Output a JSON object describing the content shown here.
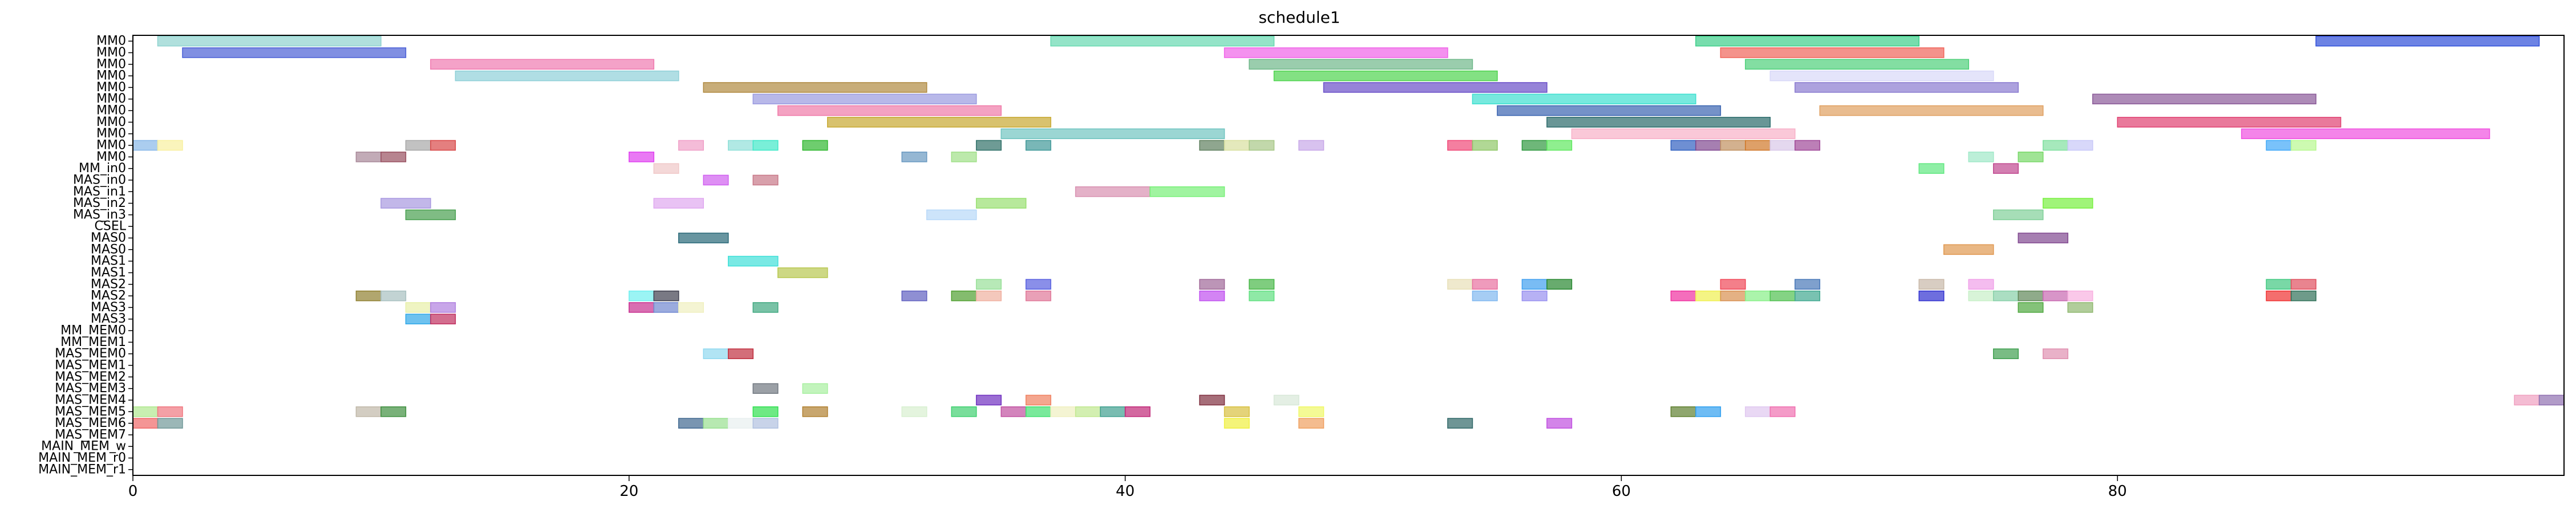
{
  "chart_data": {
    "type": "gantt",
    "title": "schedule1",
    "xlim": [
      0,
      98
    ],
    "x_ticks": [
      0,
      20,
      40,
      60,
      80
    ],
    "grid": false,
    "rows": [
      "MM0",
      "MM0",
      "MM0",
      "MM0",
      "MM0",
      "MM0",
      "MM0",
      "MM0",
      "MM0",
      "MM0",
      "MM0",
      "MM_in0",
      "MAS_in0",
      "MAS_in1",
      "MAS_in2",
      "MAS_in3",
      "CSEL",
      "MAS0",
      "MAS0",
      "MAS1",
      "MAS1",
      "MAS2",
      "MAS2",
      "MAS3",
      "MAS3",
      "MM_MEM0",
      "MM_MEM1",
      "MAS_MEM0",
      "MAS_MEM1",
      "MAS_MEM2",
      "MAS_MEM3",
      "MAS_MEM4",
      "MAS_MEM5",
      "MAS_MEM6",
      "MAS_MEM7",
      "MAIN_MEM_w",
      "MAIN_MEM_r0",
      "MAIN_MEM_r1"
    ],
    "tasks": [
      {
        "row": 0,
        "start": 1,
        "end": 10,
        "color": "#8fd3cf"
      },
      {
        "row": 0,
        "start": 37,
        "end": 46,
        "color": "#66d9b0"
      },
      {
        "row": 0,
        "start": 63,
        "end": 72,
        "color": "#3dcf8a"
      },
      {
        "row": 0,
        "start": 88,
        "end": 97,
        "color": "#2f4fd9"
      },
      {
        "row": 1,
        "start": 2,
        "end": 11,
        "color": "#4a5fd6"
      },
      {
        "row": 1,
        "start": 44,
        "end": 53,
        "color": "#f062e8"
      },
      {
        "row": 1,
        "start": 64,
        "end": 73,
        "color": "#f0645a"
      },
      {
        "row": 2,
        "start": 12,
        "end": 21,
        "color": "#f07ab0"
      },
      {
        "row": 2,
        "start": 45,
        "end": 54,
        "color": "#6fb88a"
      },
      {
        "row": 2,
        "start": 65,
        "end": 74,
        "color": "#4fd07a"
      },
      {
        "row": 3,
        "start": 13,
        "end": 22,
        "color": "#8fd0d8"
      },
      {
        "row": 3,
        "start": 46,
        "end": 55,
        "color": "#4ed44e"
      },
      {
        "row": 3,
        "start": 66,
        "end": 75,
        "color": "#d8d8f8"
      },
      {
        "row": 4,
        "start": 23,
        "end": 32,
        "color": "#b08a40"
      },
      {
        "row": 4,
        "start": 48,
        "end": 57,
        "color": "#6a4fc8"
      },
      {
        "row": 4,
        "start": 67,
        "end": 76,
        "color": "#8a7ad0"
      },
      {
        "row": 5,
        "start": 25,
        "end": 34,
        "color": "#9a9ae0"
      },
      {
        "row": 5,
        "start": 54,
        "end": 63,
        "color": "#3de0d0"
      },
      {
        "row": 5,
        "start": 79,
        "end": 88,
        "color": "#8a5a98"
      },
      {
        "row": 6,
        "start": 26,
        "end": 35,
        "color": "#f07aa8"
      },
      {
        "row": 6,
        "start": 55,
        "end": 64,
        "color": "#3a64b0"
      },
      {
        "row": 6,
        "start": 68,
        "end": 77,
        "color": "#e0a060"
      },
      {
        "row": 7,
        "start": 28,
        "end": 37,
        "color": "#c8a830"
      },
      {
        "row": 7,
        "start": 57,
        "end": 66,
        "color": "#2a6a6a"
      },
      {
        "row": 7,
        "start": 80,
        "end": 89,
        "color": "#e04070"
      },
      {
        "row": 8,
        "start": 35,
        "end": 44,
        "color": "#70c4c0"
      },
      {
        "row": 8,
        "start": 58,
        "end": 67,
        "color": "#f8b0c8"
      },
      {
        "row": 8,
        "start": 85,
        "end": 95,
        "color": "#f050e0"
      },
      {
        "row": 9,
        "start": 0,
        "end": 1,
        "color": "#88b8e8"
      },
      {
        "row": 9,
        "start": 1,
        "end": 2,
        "color": "#f8f0a0"
      },
      {
        "row": 9,
        "start": 11,
        "end": 12,
        "color": "#a8a8a8"
      },
      {
        "row": 9,
        "start": 12,
        "end": 13,
        "color": "#d84848"
      },
      {
        "row": 9,
        "start": 22,
        "end": 23,
        "color": "#f0a0c8"
      },
      {
        "row": 9,
        "start": 24,
        "end": 25,
        "color": "#90e0d8"
      },
      {
        "row": 9,
        "start": 25,
        "end": 26,
        "color": "#40e8c8"
      },
      {
        "row": 9,
        "start": 27,
        "end": 28,
        "color": "#30b830"
      },
      {
        "row": 9,
        "start": 34,
        "end": 35,
        "color": "#307068"
      },
      {
        "row": 9,
        "start": 36,
        "end": 37,
        "color": "#409898"
      },
      {
        "row": 9,
        "start": 43,
        "end": 44,
        "color": "#608060"
      },
      {
        "row": 9,
        "start": 44,
        "end": 45,
        "color": "#d8e0a0"
      },
      {
        "row": 9,
        "start": 45,
        "end": 46,
        "color": "#a8c888"
      },
      {
        "row": 9,
        "start": 47,
        "end": 48,
        "color": "#c8a8e8"
      },
      {
        "row": 9,
        "start": 53,
        "end": 54,
        "color": "#f04878"
      },
      {
        "row": 9,
        "start": 54,
        "end": 55,
        "color": "#90c868"
      },
      {
        "row": 9,
        "start": 56,
        "end": 57,
        "color": "#309840"
      },
      {
        "row": 9,
        "start": 57,
        "end": 58,
        "color": "#60e860"
      },
      {
        "row": 9,
        "start": 62,
        "end": 63,
        "color": "#3060c0"
      },
      {
        "row": 9,
        "start": 63,
        "end": 64,
        "color": "#804890"
      },
      {
        "row": 9,
        "start": 64,
        "end": 65,
        "color": "#c09060"
      },
      {
        "row": 9,
        "start": 65,
        "end": 66,
        "color": "#d07828"
      },
      {
        "row": 9,
        "start": 66,
        "end": 67,
        "color": "#d8c8e8"
      },
      {
        "row": 9,
        "start": 67,
        "end": 68,
        "color": "#a04898"
      },
      {
        "row": 9,
        "start": 77,
        "end": 78,
        "color": "#80e0a0"
      },
      {
        "row": 9,
        "start": 78,
        "end": 79,
        "color": "#c8c8f8"
      },
      {
        "row": 9,
        "start": 86,
        "end": 87,
        "color": "#40a8f8"
      },
      {
        "row": 9,
        "start": 87,
        "end": 88,
        "color": "#b8f890"
      },
      {
        "row": 10,
        "start": 9,
        "end": 10,
        "color": "#a88898"
      },
      {
        "row": 10,
        "start": 10,
        "end": 11,
        "color": "#985060"
      },
      {
        "row": 10,
        "start": 20,
        "end": 21,
        "color": "#e040f0"
      },
      {
        "row": 10,
        "start": 31,
        "end": 32,
        "color": "#6898c0"
      },
      {
        "row": 10,
        "start": 33,
        "end": 34,
        "color": "#a0e088"
      },
      {
        "row": 10,
        "start": 74,
        "end": 75,
        "color": "#a0e8c8"
      },
      {
        "row": 10,
        "start": 76,
        "end": 77,
        "color": "#78d868"
      },
      {
        "row": 11,
        "start": 21,
        "end": 22,
        "color": "#f0c8c8"
      },
      {
        "row": 11,
        "start": 72,
        "end": 73,
        "color": "#60e880"
      },
      {
        "row": 11,
        "start": 75,
        "end": 76,
        "color": "#c04890"
      },
      {
        "row": 12,
        "start": 23,
        "end": 24,
        "color": "#d060f0"
      },
      {
        "row": 12,
        "start": 25,
        "end": 26,
        "color": "#c87888"
      },
      {
        "row": 13,
        "start": 38,
        "end": 41,
        "color": "#d890b0"
      },
      {
        "row": 13,
        "start": 41,
        "end": 44,
        "color": "#78f078"
      },
      {
        "row": 14,
        "start": 10,
        "end": 12,
        "color": "#a898e0"
      },
      {
        "row": 14,
        "start": 21,
        "end": 23,
        "color": "#e0a8f0"
      },
      {
        "row": 14,
        "start": 34,
        "end": 36,
        "color": "#98e070"
      },
      {
        "row": 14,
        "start": 77,
        "end": 79,
        "color": "#78f040"
      },
      {
        "row": 15,
        "start": 11,
        "end": 13,
        "color": "#48a050"
      },
      {
        "row": 15,
        "start": 32,
        "end": 34,
        "color": "#b8d8f8"
      },
      {
        "row": 15,
        "start": 75,
        "end": 77,
        "color": "#80d098"
      },
      {
        "row": 17,
        "start": 22,
        "end": 24,
        "color": "#286878"
      },
      {
        "row": 17,
        "start": 76,
        "end": 78,
        "color": "#804890"
      },
      {
        "row": 18,
        "start": 73,
        "end": 75,
        "color": "#e09850"
      },
      {
        "row": 19,
        "start": 24,
        "end": 26,
        "color": "#40e0d8"
      },
      {
        "row": 20,
        "start": 26,
        "end": 28,
        "color": "#b8c850"
      },
      {
        "row": 21,
        "start": 34,
        "end": 35,
        "color": "#98e098"
      },
      {
        "row": 21,
        "start": 36,
        "end": 37,
        "color": "#5860e0"
      },
      {
        "row": 21,
        "start": 43,
        "end": 44,
        "color": "#a06898"
      },
      {
        "row": 21,
        "start": 45,
        "end": 46,
        "color": "#48b848"
      },
      {
        "row": 21,
        "start": 53,
        "end": 54,
        "color": "#e8e0b8"
      },
      {
        "row": 21,
        "start": 54,
        "end": 55,
        "color": "#e870a0"
      },
      {
        "row": 21,
        "start": 56,
        "end": 57,
        "color": "#40a0f0"
      },
      {
        "row": 21,
        "start": 57,
        "end": 58,
        "color": "#288830"
      },
      {
        "row": 21,
        "start": 64,
        "end": 65,
        "color": "#f04858"
      },
      {
        "row": 21,
        "start": 67,
        "end": 68,
        "color": "#4878b8"
      },
      {
        "row": 21,
        "start": 72,
        "end": 73,
        "color": "#c8b8a8"
      },
      {
        "row": 21,
        "start": 74,
        "end": 75,
        "color": "#f0a0e8"
      },
      {
        "row": 21,
        "start": 86,
        "end": 87,
        "color": "#40c880"
      },
      {
        "row": 21,
        "start": 87,
        "end": 88,
        "color": "#e05060"
      },
      {
        "row": 22,
        "start": 9,
        "end": 10,
        "color": "#908030"
      },
      {
        "row": 22,
        "start": 10,
        "end": 11,
        "color": "#a8c0c0"
      },
      {
        "row": 22,
        "start": 20,
        "end": 21,
        "color": "#70f0f0"
      },
      {
        "row": 22,
        "start": 21,
        "end": 22,
        "color": "#404050"
      },
      {
        "row": 22,
        "start": 31,
        "end": 32,
        "color": "#6060c0"
      },
      {
        "row": 22,
        "start": 33,
        "end": 34,
        "color": "#50a030"
      },
      {
        "row": 22,
        "start": 34,
        "end": 35,
        "color": "#f0b0a0"
      },
      {
        "row": 22,
        "start": 36,
        "end": 37,
        "color": "#e07898"
      },
      {
        "row": 22,
        "start": 43,
        "end": 44,
        "color": "#c050f0"
      },
      {
        "row": 22,
        "start": 45,
        "end": 46,
        "color": "#60e080"
      },
      {
        "row": 22,
        "start": 54,
        "end": 55,
        "color": "#80b8f0"
      },
      {
        "row": 22,
        "start": 56,
        "end": 57,
        "color": "#9890f0"
      },
      {
        "row": 22,
        "start": 62,
        "end": 63,
        "color": "#f030a0"
      },
      {
        "row": 22,
        "start": 63,
        "end": 64,
        "color": "#f0f050"
      },
      {
        "row": 22,
        "start": 64,
        "end": 65,
        "color": "#d89050"
      },
      {
        "row": 22,
        "start": 65,
        "end": 66,
        "color": "#88f088"
      },
      {
        "row": 22,
        "start": 66,
        "end": 67,
        "color": "#50c050"
      },
      {
        "row": 22,
        "start": 67,
        "end": 68,
        "color": "#40a890"
      },
      {
        "row": 22,
        "start": 72,
        "end": 73,
        "color": "#3030d0"
      },
      {
        "row": 22,
        "start": 74,
        "end": 75,
        "color": "#c8f0c8"
      },
      {
        "row": 22,
        "start": 75,
        "end": 76,
        "color": "#88d0a8"
      },
      {
        "row": 22,
        "start": 76,
        "end": 77,
        "color": "#608858"
      },
      {
        "row": 22,
        "start": 77,
        "end": 78,
        "color": "#c868b0"
      },
      {
        "row": 22,
        "start": 78,
        "end": 79,
        "color": "#f8b0e0"
      },
      {
        "row": 22,
        "start": 86,
        "end": 87,
        "color": "#f03030"
      },
      {
        "row": 22,
        "start": 87,
        "end": 88,
        "color": "#307058"
      },
      {
        "row": 23,
        "start": 11,
        "end": 12,
        "color": "#e8f0a8"
      },
      {
        "row": 23,
        "start": 12,
        "end": 13,
        "color": "#b080e0"
      },
      {
        "row": 23,
        "start": 20,
        "end": 21,
        "color": "#c83090"
      },
      {
        "row": 23,
        "start": 21,
        "end": 22,
        "color": "#7088d0"
      },
      {
        "row": 23,
        "start": 22,
        "end": 23,
        "color": "#f0f0c0"
      },
      {
        "row": 23,
        "start": 25,
        "end": 26,
        "color": "#40a880"
      },
      {
        "row": 23,
        "start": 76,
        "end": 77,
        "color": "#50a840"
      },
      {
        "row": 23,
        "start": 78,
        "end": 79,
        "color": "#90b870"
      },
      {
        "row": 24,
        "start": 11,
        "end": 12,
        "color": "#30a8e8"
      },
      {
        "row": 24,
        "start": 12,
        "end": 13,
        "color": "#c03060"
      },
      {
        "row": 27,
        "start": 23,
        "end": 24,
        "color": "#90d8f0"
      },
      {
        "row": 27,
        "start": 24,
        "end": 25,
        "color": "#c03040"
      },
      {
        "row": 27,
        "start": 75,
        "end": 76,
        "color": "#40a050"
      },
      {
        "row": 27,
        "start": 77,
        "end": 78,
        "color": "#e090b0"
      },
      {
        "row": 30,
        "start": 25,
        "end": 26,
        "color": "#707880"
      },
      {
        "row": 30,
        "start": 27,
        "end": 28,
        "color": "#a8f0a0"
      },
      {
        "row": 31,
        "start": 34,
        "end": 35,
        "color": "#7030c0"
      },
      {
        "row": 31,
        "start": 36,
        "end": 37,
        "color": "#f08060"
      },
      {
        "row": 31,
        "start": 43,
        "end": 44,
        "color": "#803040"
      },
      {
        "row": 31,
        "start": 46,
        "end": 47,
        "color": "#d8e8d8"
      },
      {
        "row": 31,
        "start": 96,
        "end": 97,
        "color": "#f0a0c0"
      },
      {
        "row": 31,
        "start": 97,
        "end": 98,
        "color": "#9070b0"
      },
      {
        "row": 32,
        "start": 0,
        "end": 1,
        "color": "#b0e890"
      },
      {
        "row": 32,
        "start": 1,
        "end": 2,
        "color": "#f07880"
      },
      {
        "row": 32,
        "start": 9,
        "end": 10,
        "color": "#c0b8a8"
      },
      {
        "row": 32,
        "start": 10,
        "end": 11,
        "color": "#409040"
      },
      {
        "row": 32,
        "start": 25,
        "end": 26,
        "color": "#30e050"
      },
      {
        "row": 32,
        "start": 27,
        "end": 28,
        "color": "#b08030"
      },
      {
        "row": 32,
        "start": 31,
        "end": 32,
        "color": "#d8f0d0"
      },
      {
        "row": 32,
        "start": 33,
        "end": 34,
        "color": "#40d070"
      },
      {
        "row": 32,
        "start": 35,
        "end": 36,
        "color": "#c050a0"
      },
      {
        "row": 32,
        "start": 36,
        "end": 37,
        "color": "#40e070"
      },
      {
        "row": 32,
        "start": 37,
        "end": 38,
        "color": "#f0f0c0"
      },
      {
        "row": 32,
        "start": 38,
        "end": 39,
        "color": "#c0e890"
      },
      {
        "row": 32,
        "start": 39,
        "end": 40,
        "color": "#40a090"
      },
      {
        "row": 32,
        "start": 40,
        "end": 41,
        "color": "#c02878"
      },
      {
        "row": 32,
        "start": 44,
        "end": 45,
        "color": "#d8c040"
      },
      {
        "row": 32,
        "start": 47,
        "end": 48,
        "color": "#f0f868"
      },
      {
        "row": 32,
        "start": 62,
        "end": 63,
        "color": "#608030"
      },
      {
        "row": 32,
        "start": 63,
        "end": 64,
        "color": "#30a0f0"
      },
      {
        "row": 32,
        "start": 65,
        "end": 66,
        "color": "#e0c8f0"
      },
      {
        "row": 32,
        "start": 66,
        "end": 67,
        "color": "#f070b0"
      },
      {
        "row": 33,
        "start": 0,
        "end": 1,
        "color": "#f06868"
      },
      {
        "row": 33,
        "start": 1,
        "end": 2,
        "color": "#709898"
      },
      {
        "row": 33,
        "start": 22,
        "end": 23,
        "color": "#406890"
      },
      {
        "row": 33,
        "start": 23,
        "end": 24,
        "color": "#98e090"
      },
      {
        "row": 33,
        "start": 24,
        "end": 25,
        "color": "#e8f0f0"
      },
      {
        "row": 33,
        "start": 25,
        "end": 26,
        "color": "#b0c0e0"
      },
      {
        "row": 33,
        "start": 44,
        "end": 45,
        "color": "#f0f040"
      },
      {
        "row": 33,
        "start": 47,
        "end": 48,
        "color": "#f0a060"
      },
      {
        "row": 33,
        "start": 53,
        "end": 54,
        "color": "#306868"
      },
      {
        "row": 33,
        "start": 57,
        "end": 58,
        "color": "#c050e0"
      }
    ]
  }
}
